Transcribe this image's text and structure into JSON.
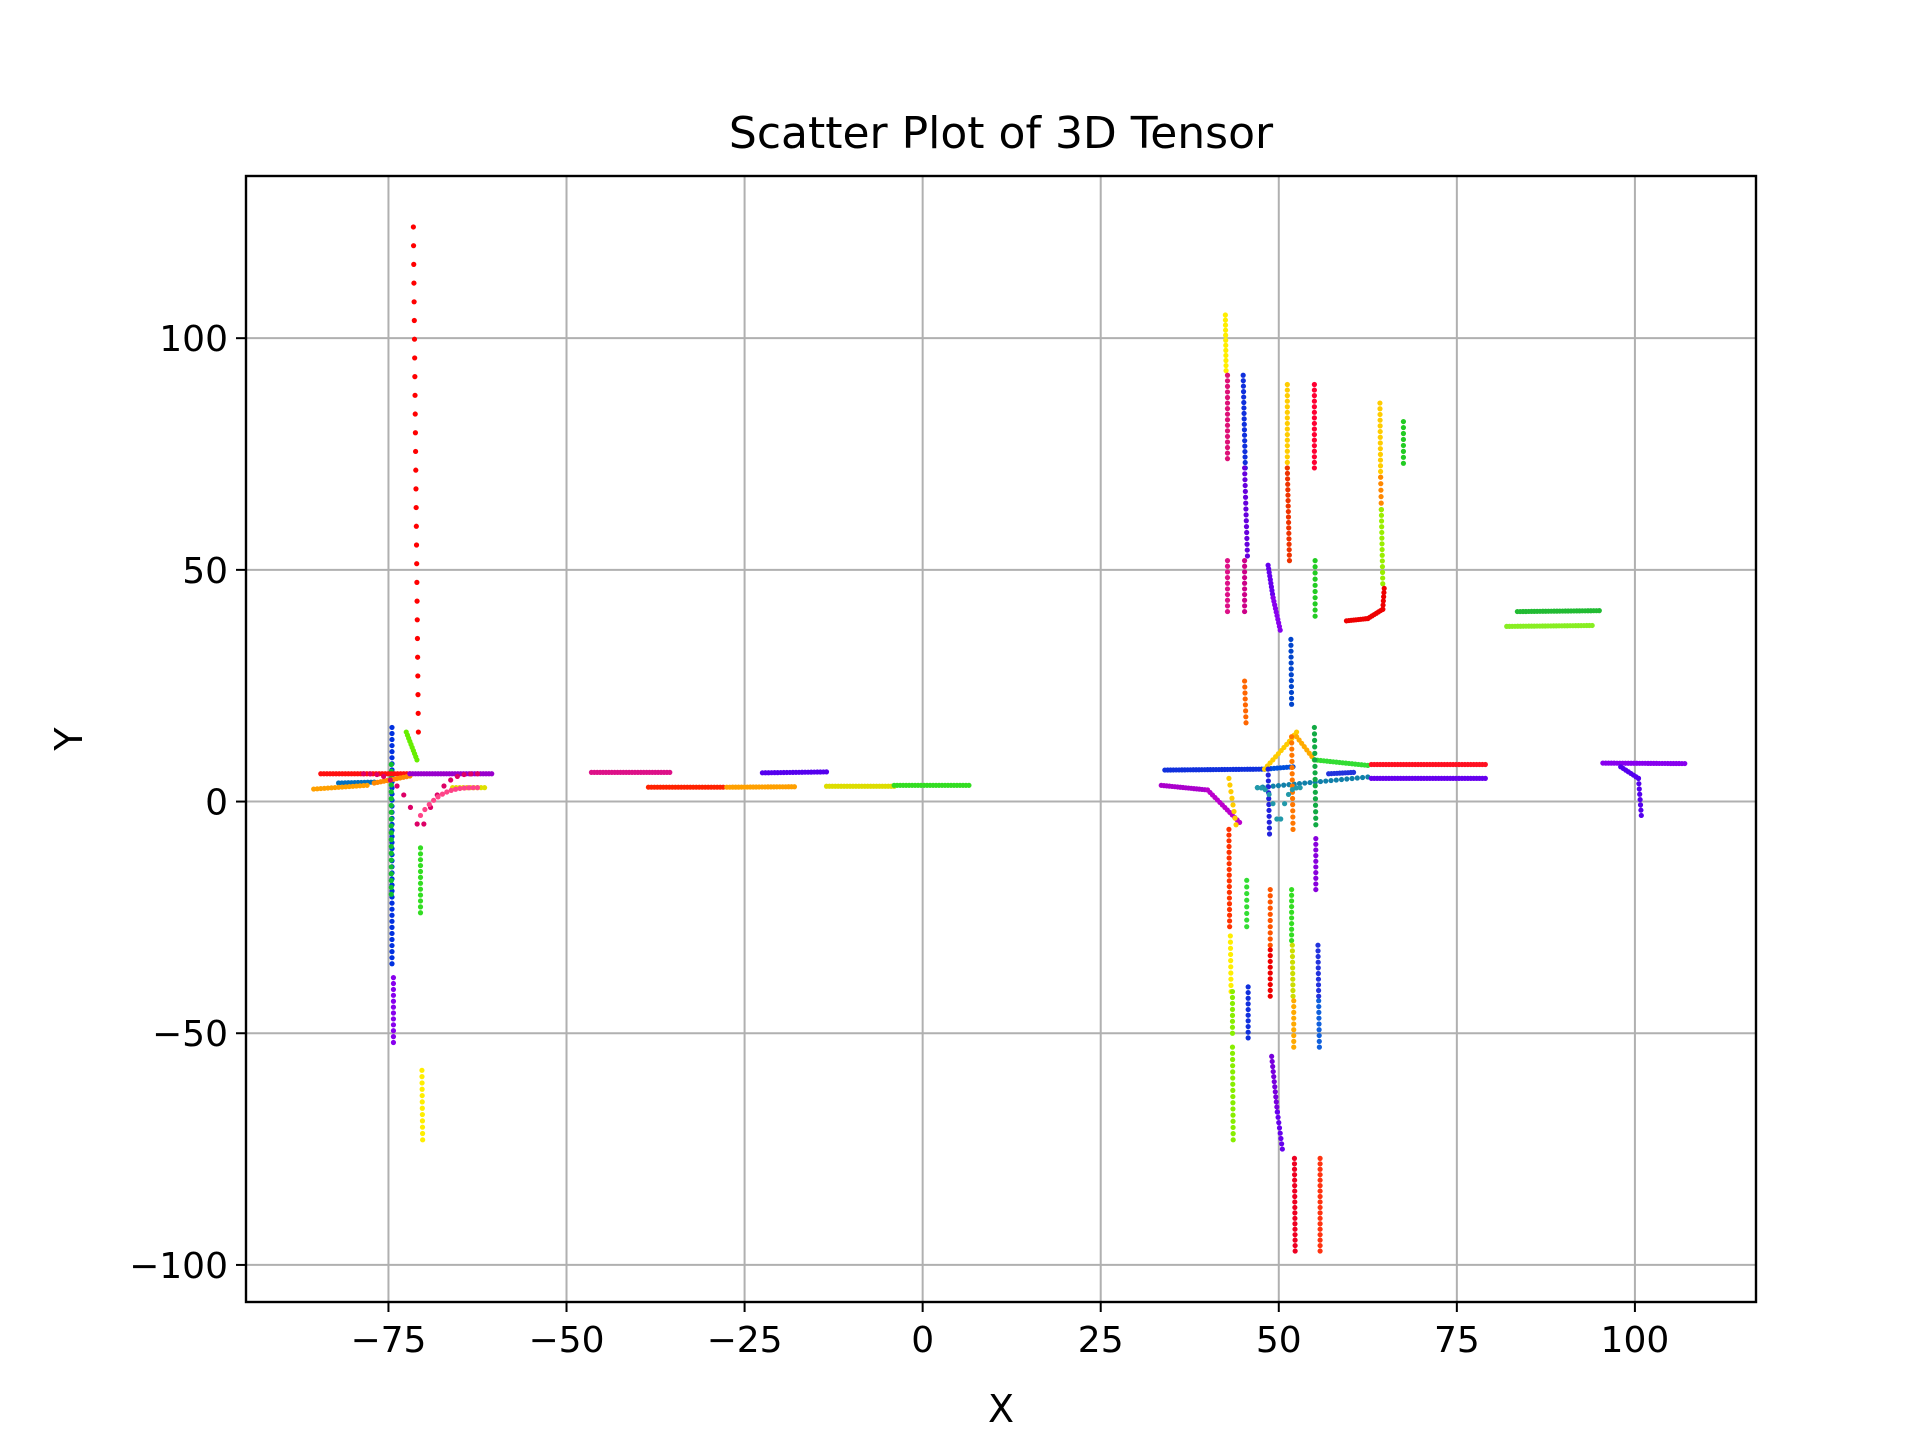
{
  "chart_data": {
    "type": "scatter",
    "title": "Scatter Plot of 3D Tensor",
    "xlabel": "X",
    "ylabel": "Y",
    "xlim": [
      -95,
      117
    ],
    "ylim": [
      -108,
      135
    ],
    "xticks": [
      -75,
      -50,
      -25,
      0,
      25,
      50,
      75,
      100
    ],
    "xtick_labels": [
      "−75",
      "−50",
      "−25",
      "0",
      "25",
      "50",
      "75",
      "100"
    ],
    "yticks": [
      -100,
      -50,
      0,
      50,
      100
    ],
    "ytick_labels": [
      "−100",
      "−50",
      "0",
      "50",
      "100"
    ],
    "grid": true,
    "legend": "none",
    "colormap": "hsv",
    "segments": [
      {
        "color": "#ff0000",
        "from": [
          -71.5,
          124
        ],
        "to": [
          -70.8,
          15
        ],
        "n": 28
      },
      {
        "color": "#0030e0",
        "from": [
          -74.5,
          16
        ],
        "to": [
          -74.5,
          -35
        ],
        "n": 40
      },
      {
        "color": "#8800ee",
        "from": [
          -74.3,
          -38
        ],
        "to": [
          -74.3,
          -52
        ],
        "n": 12
      },
      {
        "color": "#10c030",
        "from": [
          -74.6,
          8
        ],
        "to": [
          -74.6,
          -20
        ],
        "n": 20
      },
      {
        "color": "#33dd22",
        "from": [
          -70.5,
          -10
        ],
        "to": [
          -70.5,
          -24
        ],
        "n": 12
      },
      {
        "color": "#ffee00",
        "from": [
          -70.3,
          -58
        ],
        "to": [
          -70.2,
          -73
        ],
        "n": 12
      },
      {
        "color": "#ff1010",
        "from": [
          -84.5,
          6
        ],
        "to": [
          -72,
          6
        ],
        "n": 30
      },
      {
        "color": "#0070c0",
        "from": [
          -82,
          4
        ],
        "to": [
          -77,
          4.2
        ],
        "n": 12
      },
      {
        "color": "#ffa000",
        "from": [
          -85.5,
          2.7
        ],
        "to": [
          -78,
          3.5
        ],
        "n": 16
      },
      {
        "color": "#ff8800",
        "from": [
          -77,
          4
        ],
        "to": [
          -72,
          5.5
        ],
        "n": 12
      },
      {
        "color": "#9900cc",
        "from": [
          -72,
          6
        ],
        "to": [
          -60.5,
          6
        ],
        "n": 30
      },
      {
        "color": "#e0e000",
        "from": [
          -66,
          3
        ],
        "to": [
          -61.5,
          3
        ],
        "n": 10
      },
      {
        "color": "#66ee00",
        "from": [
          -72.5,
          15
        ],
        "to": [
          -71,
          9
        ],
        "n": 10
      },
      {
        "color": "#dd1188",
        "from": [
          -46.5,
          6.3
        ],
        "to": [
          -35.5,
          6.3
        ],
        "n": 28
      },
      {
        "color": "#ff2200",
        "from": [
          -38.5,
          3.1
        ],
        "to": [
          -28,
          3.1
        ],
        "n": 26
      },
      {
        "color": "#ffa000",
        "from": [
          -27.5,
          3.1
        ],
        "to": [
          -18,
          3.2
        ],
        "n": 24
      },
      {
        "color": "#5500ee",
        "from": [
          -22.5,
          6.2
        ],
        "to": [
          -13.5,
          6.4
        ],
        "n": 22
      },
      {
        "color": "#dddd00",
        "from": [
          -13.5,
          3.3
        ],
        "to": [
          -4,
          3.3
        ],
        "n": 24
      },
      {
        "color": "#33dd22",
        "from": [
          -4,
          3.5
        ],
        "to": [
          6.5,
          3.5
        ],
        "n": 26
      },
      {
        "color": "#ffee00",
        "from": [
          42.5,
          105
        ],
        "to": [
          42.6,
          93
        ],
        "n": 12
      },
      {
        "color": "#dd1177",
        "from": [
          42.8,
          92
        ],
        "to": [
          42.8,
          74
        ],
        "n": 16
      },
      {
        "color": "#1030dd",
        "from": [
          45,
          92
        ],
        "to": [
          45.3,
          72
        ],
        "n": 18
      },
      {
        "color": "#6600dd",
        "from": [
          45.2,
          72
        ],
        "to": [
          45.6,
          53
        ],
        "n": 16
      },
      {
        "color": "#dd1188",
        "from": [
          42.8,
          52
        ],
        "to": [
          42.8,
          41
        ],
        "n": 10
      },
      {
        "color": "#cc0088",
        "from": [
          45.2,
          52
        ],
        "to": [
          45.2,
          41
        ],
        "n": 10
      },
      {
        "color": "#ffcc00",
        "from": [
          51.2,
          90
        ],
        "to": [
          51.2,
          72
        ],
        "n": 16
      },
      {
        "color": "#ee3300",
        "from": [
          51.2,
          72
        ],
        "to": [
          51.5,
          52
        ],
        "n": 18
      },
      {
        "color": "#ff0033",
        "from": [
          55,
          90
        ],
        "to": [
          55,
          72
        ],
        "n": 16
      },
      {
        "color": "#22cc22",
        "from": [
          55.1,
          52
        ],
        "to": [
          55.1,
          40
        ],
        "n": 10
      },
      {
        "color": "#ffcc00",
        "from": [
          64.2,
          86
        ],
        "to": [
          64.3,
          70
        ],
        "n": 14
      },
      {
        "color": "#ff8800",
        "from": [
          64.3,
          70
        ],
        "to": [
          64.4,
          63
        ],
        "n": 6
      },
      {
        "color": "#99ee00",
        "from": [
          64.4,
          63
        ],
        "to": [
          64.6,
          47
        ],
        "n": 14
      },
      {
        "color": "#22cc22",
        "from": [
          67.5,
          82
        ],
        "to": [
          67.5,
          73
        ],
        "n": 8
      },
      {
        "color": "#ee0000",
        "from": [
          59.5,
          39
        ],
        "to": [
          62.5,
          39.5
        ],
        "n": 10
      },
      {
        "color": "#ee0000",
        "from": [
          62.5,
          39.5
        ],
        "to": [
          64.6,
          41.5
        ],
        "n": 8
      },
      {
        "color": "#ee0000",
        "from": [
          64.6,
          41.5
        ],
        "to": [
          64.8,
          46
        ],
        "n": 6
      },
      {
        "color": "#6600ee",
        "from": [
          48.5,
          51
        ],
        "to": [
          49.2,
          44
        ],
        "n": 10
      },
      {
        "color": "#8800ee",
        "from": [
          49.2,
          44
        ],
        "to": [
          50.2,
          37
        ],
        "n": 10
      },
      {
        "color": "#0044cc",
        "from": [
          51.7,
          35
        ],
        "to": [
          51.8,
          21
        ],
        "n": 12
      },
      {
        "color": "#ff6600",
        "from": [
          45.2,
          26
        ],
        "to": [
          45.4,
          17
        ],
        "n": 8
      },
      {
        "color": "#1030dd",
        "from": [
          34,
          6.8
        ],
        "to": [
          48,
          7
        ],
        "n": 36
      },
      {
        "color": "#0050dd",
        "from": [
          48,
          7
        ],
        "to": [
          52,
          7.5
        ],
        "n": 10
      },
      {
        "color": "#ffcc00",
        "from": [
          48,
          7
        ],
        "to": [
          51.5,
          13
        ],
        "n": 10
      },
      {
        "color": "#ffcc00",
        "from": [
          51.5,
          13
        ],
        "to": [
          52.5,
          15
        ],
        "n": 4
      },
      {
        "color": "#ffaa00",
        "from": [
          52.5,
          14
        ],
        "to": [
          55,
          9
        ],
        "n": 8
      },
      {
        "color": "#33dd33",
        "from": [
          55,
          9
        ],
        "to": [
          62.5,
          7.8
        ],
        "n": 18
      },
      {
        "color": "#1080aa",
        "from": [
          47,
          3
        ],
        "to": [
          62.5,
          5.3
        ],
        "n": 22
      },
      {
        "color": "#2233dd",
        "from": [
          57,
          6
        ],
        "to": [
          60.5,
          6.3
        ],
        "n": 10
      },
      {
        "color": "#ff1122",
        "from": [
          63,
          8
        ],
        "to": [
          79,
          8
        ],
        "n": 40
      },
      {
        "color": "#6600ee",
        "from": [
          63,
          5
        ],
        "to": [
          79,
          5
        ],
        "n": 40
      },
      {
        "color": "#aa00cc",
        "from": [
          33.5,
          3.5
        ],
        "to": [
          40,
          2.5
        ],
        "n": 18
      },
      {
        "color": "#bb00cc",
        "from": [
          40,
          2.5
        ],
        "to": [
          44.5,
          -4.5
        ],
        "n": 14
      },
      {
        "color": "#ff3300",
        "from": [
          43,
          -6
        ],
        "to": [
          43.1,
          -27
        ],
        "n": 18
      },
      {
        "color": "#ffee00",
        "from": [
          43.2,
          -29
        ],
        "to": [
          43.3,
          -41
        ],
        "n": 10
      },
      {
        "color": "#88ee00",
        "from": [
          43.5,
          -41
        ],
        "to": [
          43.5,
          -50
        ],
        "n": 8
      },
      {
        "color": "#88ee00",
        "from": [
          43.5,
          -53
        ],
        "to": [
          43.6,
          -73
        ],
        "n": 16
      },
      {
        "color": "#33dd33",
        "from": [
          45.5,
          -17
        ],
        "to": [
          45.5,
          -27
        ],
        "n": 8
      },
      {
        "color": "#1030dd",
        "from": [
          45.7,
          -40
        ],
        "to": [
          45.7,
          -51
        ],
        "n": 10
      },
      {
        "color": "#ff5500",
        "from": [
          48.8,
          -19
        ],
        "to": [
          48.8,
          -31
        ],
        "n": 10
      },
      {
        "color": "#ee0000",
        "from": [
          48.8,
          -32
        ],
        "to": [
          48.8,
          -42
        ],
        "n": 9
      },
      {
        "color": "#7700dd",
        "from": [
          49,
          -55
        ],
        "to": [
          49.8,
          -67
        ],
        "n": 12
      },
      {
        "color": "#6600ee",
        "from": [
          49.8,
          -67
        ],
        "to": [
          50.5,
          -75
        ],
        "n": 8
      },
      {
        "color": "#33dd22",
        "from": [
          51.8,
          -19
        ],
        "to": [
          51.8,
          -30
        ],
        "n": 10
      },
      {
        "color": "#ccdd00",
        "from": [
          51.9,
          -31
        ],
        "to": [
          52,
          -42
        ],
        "n": 10
      },
      {
        "color": "#ffaa00",
        "from": [
          52.1,
          -43
        ],
        "to": [
          52.1,
          -53
        ],
        "n": 9
      },
      {
        "color": "#ee0022",
        "from": [
          52.2,
          -77
        ],
        "to": [
          52.3,
          -97
        ],
        "n": 18
      },
      {
        "color": "#2233dd",
        "from": [
          55.5,
          -31
        ],
        "to": [
          55.6,
          -42
        ],
        "n": 10
      },
      {
        "color": "#1060dd",
        "from": [
          55.6,
          -43
        ],
        "to": [
          55.7,
          -53
        ],
        "n": 9
      },
      {
        "color": "#8800dd",
        "from": [
          55.2,
          -8
        ],
        "to": [
          55.2,
          -19
        ],
        "n": 10
      },
      {
        "color": "#ff3311",
        "from": [
          55.8,
          -77
        ],
        "to": [
          55.8,
          -97
        ],
        "n": 18
      },
      {
        "color": "#11aa44",
        "from": [
          55,
          16
        ],
        "to": [
          55.2,
          -5
        ],
        "n": 16
      },
      {
        "color": "#ff7700",
        "from": [
          51.8,
          14
        ],
        "to": [
          52,
          -6
        ],
        "n": 16
      },
      {
        "color": "#2222dd",
        "from": [
          48.5,
          7
        ],
        "to": [
          48.7,
          -7
        ],
        "n": 12
      },
      {
        "color": "#ffcc00",
        "from": [
          43,
          5
        ],
        "to": [
          44,
          -5
        ],
        "n": 8
      },
      {
        "color": "#8800ee",
        "from": [
          95.5,
          8.3
        ],
        "to": [
          107,
          8.2
        ],
        "n": 30
      },
      {
        "color": "#5500ee",
        "from": [
          98,
          7.5
        ],
        "to": [
          100.5,
          5
        ],
        "n": 8
      },
      {
        "color": "#5500ee",
        "from": [
          100.5,
          5
        ],
        "to": [
          100.9,
          -3
        ],
        "n": 8
      },
      {
        "color": "#22bb33",
        "from": [
          83.5,
          41
        ],
        "to": [
          95,
          41.2
        ],
        "n": 30
      },
      {
        "color": "#88ee22",
        "from": [
          82,
          37.8
        ],
        "to": [
          94,
          38
        ],
        "n": 32
      }
    ],
    "curves": [
      {
        "color": "#dd0066",
        "cx": -70.5,
        "cy": 6,
        "dir": "v-cusp",
        "depth": -13,
        "width": 8,
        "n": 18
      },
      {
        "color": "#ff4488",
        "cx": -70.5,
        "cy": 3,
        "dir": "cusp-right",
        "length": 8,
        "n": 14
      },
      {
        "color": "#2299aa",
        "cx": 50,
        "cy": 3,
        "dir": "v-cusp",
        "depth": -9,
        "width": 3,
        "n": 12
      }
    ]
  }
}
